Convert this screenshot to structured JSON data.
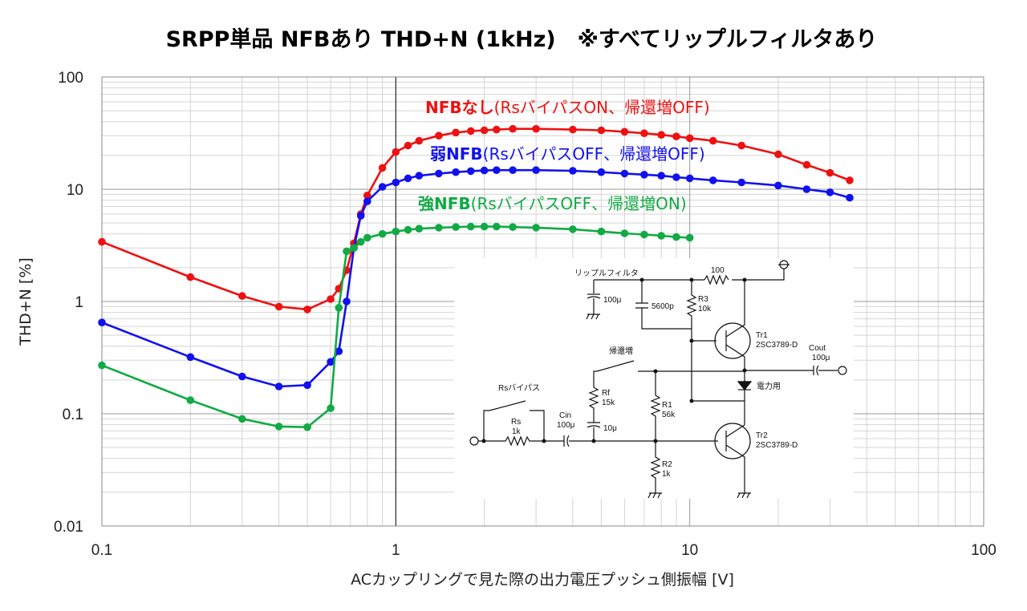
{
  "chart_data": {
    "type": "line",
    "title": "SRPP単品 NFBあり THD+N (1kHz)　※すべてリップルフィルタあり",
    "xlabel": "ACカップリングで見た際の出力電圧プッシュ側振幅 [V]",
    "ylabel": "THD+N [%]",
    "x_scale": "log",
    "y_scale": "log",
    "xlim": [
      0.1,
      100
    ],
    "ylim": [
      0.01,
      100
    ],
    "x_ticks": [
      "0.1",
      "1",
      "10",
      "100"
    ],
    "y_ticks": [
      "0.01",
      "0.1",
      "1",
      "10",
      "100"
    ],
    "grid": true,
    "series": [
      {
        "name_bold": "NFBなし",
        "name_rest": "(RsバイパスON、帰還増OFF)",
        "color": "#ee1111",
        "points": [
          [
            0.1,
            3.4
          ],
          [
            0.2,
            1.65
          ],
          [
            0.3,
            1.12
          ],
          [
            0.4,
            0.9
          ],
          [
            0.5,
            0.85
          ],
          [
            0.6,
            1.05
          ],
          [
            0.64,
            1.3
          ],
          [
            0.68,
            1.9
          ],
          [
            0.72,
            3.3
          ],
          [
            0.76,
            6.0
          ],
          [
            0.8,
            8.8
          ],
          [
            0.9,
            15.5
          ],
          [
            1.0,
            21.5
          ],
          [
            1.1,
            24.5
          ],
          [
            1.2,
            27.0
          ],
          [
            1.4,
            30.0
          ],
          [
            1.6,
            32.0
          ],
          [
            1.8,
            33.0
          ],
          [
            2.0,
            33.5
          ],
          [
            2.2,
            34.0
          ],
          [
            2.5,
            34.5
          ],
          [
            3.0,
            34.5
          ],
          [
            4.0,
            34.0
          ],
          [
            5.0,
            33.5
          ],
          [
            6.0,
            32.5
          ],
          [
            7.0,
            31.5
          ],
          [
            8.0,
            30.5
          ],
          [
            9.0,
            29.5
          ],
          [
            10.0,
            28.5
          ],
          [
            12.0,
            27.0
          ],
          [
            15.0,
            24.5
          ],
          [
            20.0,
            20.5
          ],
          [
            25.0,
            16.5
          ],
          [
            30.0,
            14.0
          ],
          [
            35.0,
            12.0
          ]
        ]
      },
      {
        "name_bold": "弱NFB",
        "name_rest": "(RsバイパスOFF、帰還増OFF)",
        "color": "#1111ee",
        "points": [
          [
            0.1,
            0.65
          ],
          [
            0.2,
            0.32
          ],
          [
            0.3,
            0.215
          ],
          [
            0.4,
            0.175
          ],
          [
            0.5,
            0.18
          ],
          [
            0.6,
            0.29
          ],
          [
            0.64,
            0.36
          ],
          [
            0.68,
            1.0
          ],
          [
            0.72,
            3.0
          ],
          [
            0.76,
            5.8
          ],
          [
            0.8,
            7.8
          ],
          [
            0.9,
            10.5
          ],
          [
            1.0,
            11.5
          ],
          [
            1.1,
            12.5
          ],
          [
            1.2,
            13.2
          ],
          [
            1.4,
            13.8
          ],
          [
            1.6,
            14.2
          ],
          [
            1.8,
            14.5
          ],
          [
            2.0,
            14.7
          ],
          [
            2.2,
            14.8
          ],
          [
            2.5,
            14.8
          ],
          [
            3.0,
            14.8
          ],
          [
            4.0,
            14.6
          ],
          [
            5.0,
            14.2
          ],
          [
            6.0,
            13.8
          ],
          [
            7.0,
            13.5
          ],
          [
            8.0,
            13.2
          ],
          [
            9.0,
            12.8
          ],
          [
            10.0,
            12.5
          ],
          [
            12.0,
            12.0
          ],
          [
            15.0,
            11.5
          ],
          [
            20.0,
            10.8
          ],
          [
            25.0,
            10.0
          ],
          [
            30.0,
            9.4
          ],
          [
            35.0,
            8.4
          ]
        ]
      },
      {
        "name_bold": "強NFB",
        "name_rest": "(RsバイパスOFF、帰還増ON)",
        "color": "#11aa44",
        "points": [
          [
            0.1,
            0.27
          ],
          [
            0.2,
            0.132
          ],
          [
            0.3,
            0.09
          ],
          [
            0.4,
            0.077
          ],
          [
            0.5,
            0.076
          ],
          [
            0.6,
            0.112
          ],
          [
            0.64,
            0.88
          ],
          [
            0.68,
            2.8
          ],
          [
            0.72,
            3.0
          ],
          [
            0.76,
            3.4
          ],
          [
            0.8,
            3.7
          ],
          [
            0.9,
            4.0
          ],
          [
            1.0,
            4.2
          ],
          [
            1.1,
            4.35
          ],
          [
            1.2,
            4.45
          ],
          [
            1.4,
            4.55
          ],
          [
            1.6,
            4.6
          ],
          [
            1.8,
            4.65
          ],
          [
            2.0,
            4.65
          ],
          [
            2.2,
            4.65
          ],
          [
            2.5,
            4.6
          ],
          [
            3.0,
            4.55
          ],
          [
            4.0,
            4.4
          ],
          [
            5.0,
            4.2
          ],
          [
            6.0,
            4.05
          ],
          [
            7.0,
            3.95
          ],
          [
            8.0,
            3.85
          ],
          [
            9.0,
            3.75
          ],
          [
            10.0,
            3.7
          ]
        ]
      }
    ]
  },
  "schematic": {
    "ripple_filter": "リップルフィルタ",
    "c_ripple": "100μ",
    "c_5600": "5600p",
    "r_100": "100",
    "r3": "R3",
    "r3_val": "10k",
    "tr1": "Tr1",
    "tr1_part": "2SC3789-D",
    "feedback_switch": "帰還増",
    "cout": "Cout",
    "cout_val": "100μ",
    "rs_bypass": "Rsバイパス",
    "rf": "Rf",
    "rf_val": "15k",
    "rf_cap": "10μ",
    "r1": "R1",
    "r1_val": "56k",
    "diode_label": "電力用",
    "rs": "Rs",
    "rs_val": "1k",
    "cin": "Cin",
    "cin_val": "100μ",
    "tr2": "Tr2",
    "tr2_part": "2SC3789-D",
    "r2": "R2",
    "r2_val": "1k"
  }
}
